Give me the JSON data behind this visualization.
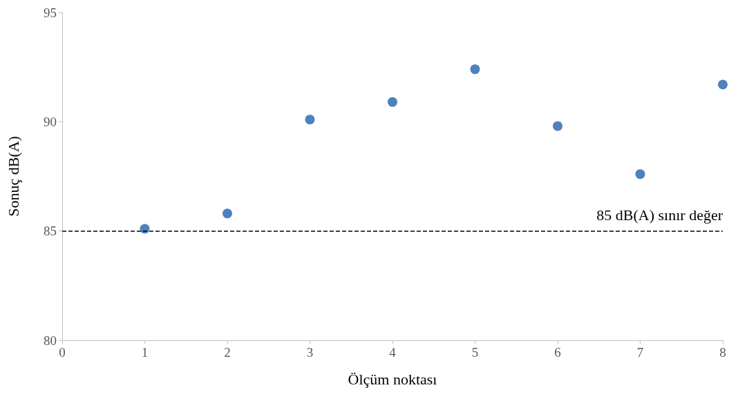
{
  "chart_data": {
    "type": "scatter",
    "xlabel": "Ölçüm noktası",
    "ylabel": "Sonuç dB(A)",
    "x": [
      1,
      2,
      3,
      4,
      5,
      6,
      7,
      8
    ],
    "values": [
      85.1,
      85.8,
      90.1,
      90.9,
      92.4,
      89.8,
      87.6,
      91.7
    ],
    "color": "#4f81bd",
    "marker": "circle",
    "xlim": [
      0,
      8
    ],
    "xticks": [
      0,
      1,
      2,
      3,
      4,
      5,
      6,
      7,
      8
    ],
    "ylim": [
      80,
      95
    ],
    "yticks": [
      80,
      85,
      90,
      95
    ],
    "grid": false,
    "ref_lines": [
      {
        "axis": "y",
        "value": 85,
        "label": "85 dB(A) sınır değer",
        "color": "#000000",
        "line_style": "dashed"
      }
    ]
  }
}
